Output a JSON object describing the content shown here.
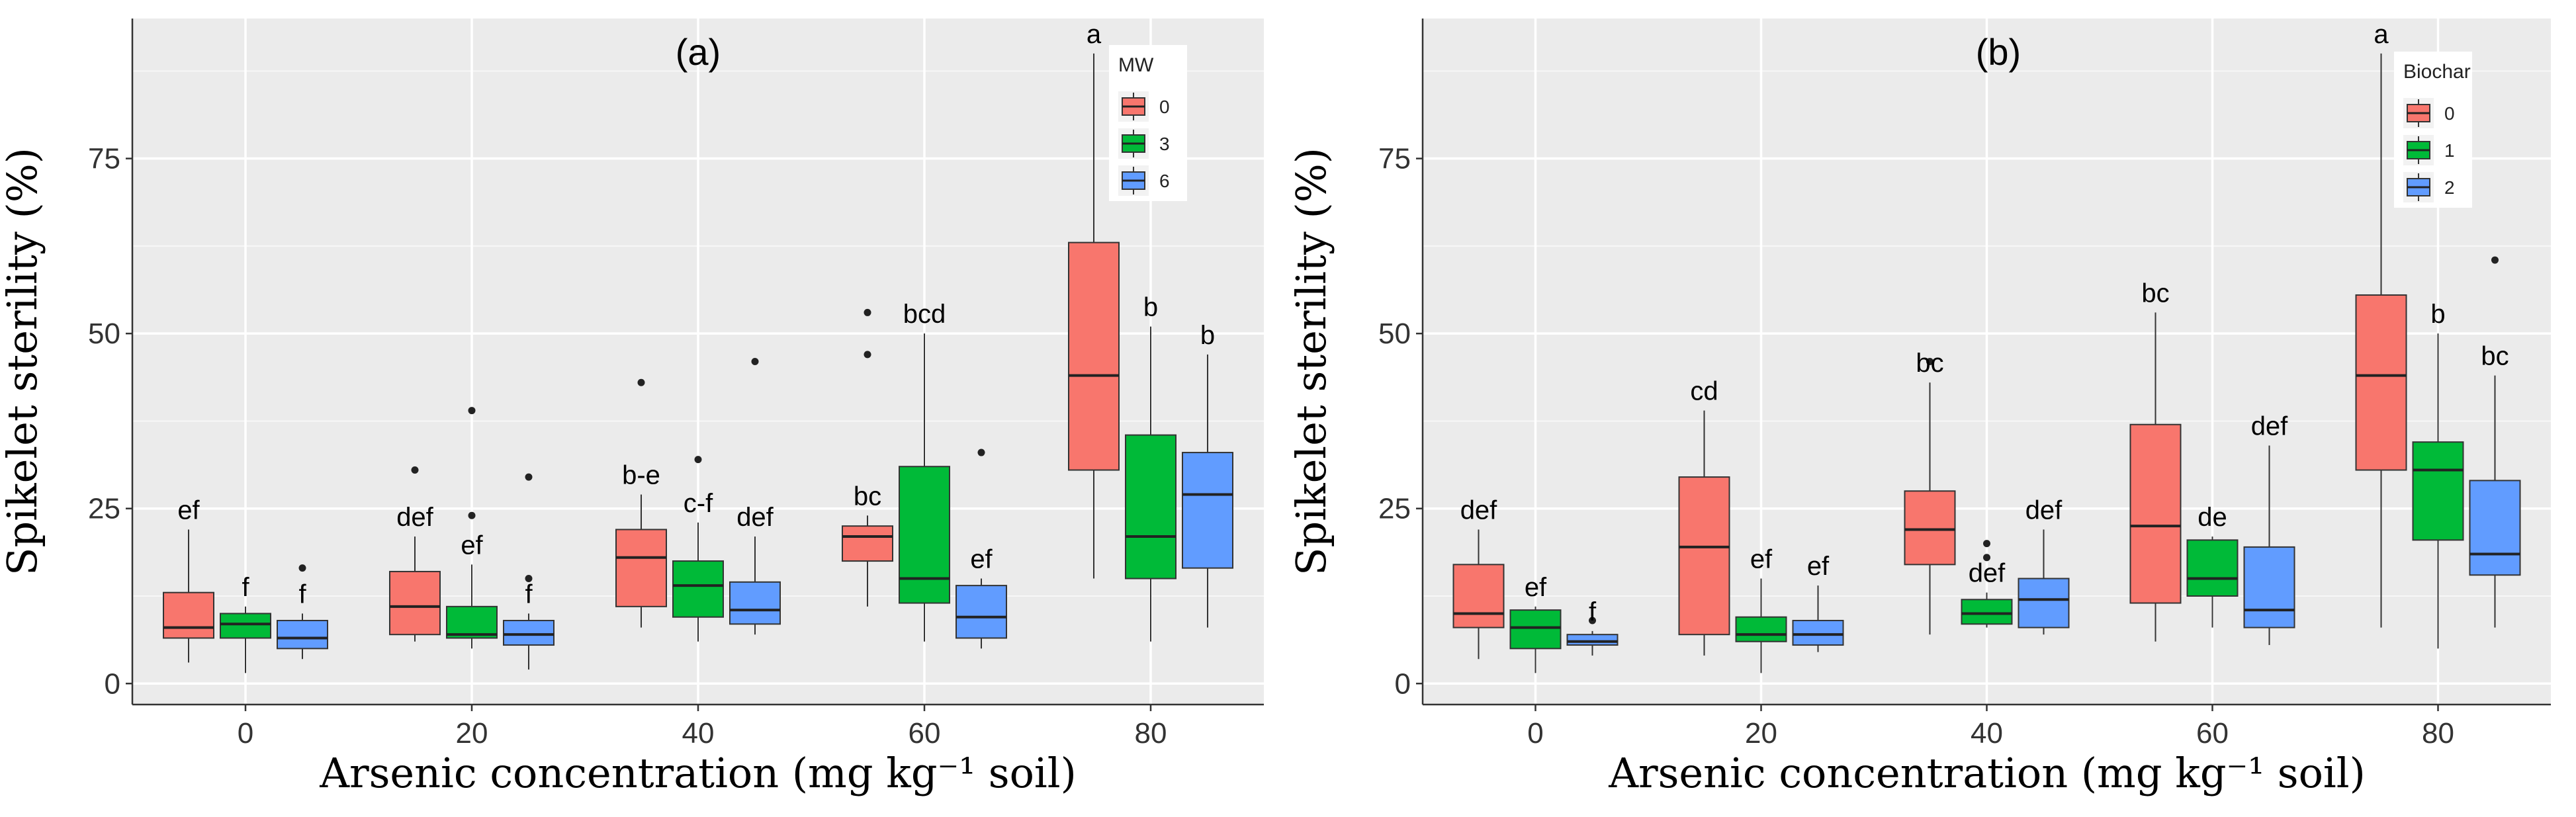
{
  "chart_data": [
    {
      "type": "boxplot",
      "title": "(a)",
      "xlabel": "Arsenic concentration (mg kg⁻¹ soil)",
      "ylabel": "Spikelet sterility (%)",
      "ylim": [
        -3,
        95
      ],
      "yticks": [
        0,
        25,
        50,
        75
      ],
      "categories": [
        "0",
        "20",
        "40",
        "60",
        "80"
      ],
      "legend": {
        "title": "MW",
        "position": "top-right",
        "entries": [
          {
            "label": "0",
            "color": "#F8766D"
          },
          {
            "label": "3",
            "color": "#00BA38"
          },
          {
            "label": "6",
            "color": "#619CFF"
          }
        ]
      },
      "boxes": [
        {
          "category": "0",
          "group": "0",
          "min": 3,
          "q1": 6.5,
          "median": 8,
          "q3": 13,
          "max": 22,
          "outliers": [],
          "label": "ef"
        },
        {
          "category": "0",
          "group": "3",
          "min": 1.5,
          "q1": 6.5,
          "median": 8.5,
          "q3": 10,
          "max": 11,
          "outliers": [],
          "label": "f"
        },
        {
          "category": "0",
          "group": "6",
          "min": 3.5,
          "q1": 5,
          "median": 6.5,
          "q3": 9,
          "max": 10,
          "outliers": [
            16.5
          ],
          "label": "f"
        },
        {
          "category": "20",
          "group": "0",
          "min": 6,
          "q1": 7,
          "median": 11,
          "q3": 16,
          "max": 21,
          "outliers": [
            30.5
          ],
          "label": "def"
        },
        {
          "category": "20",
          "group": "3",
          "min": 5,
          "q1": 6.5,
          "median": 7,
          "q3": 11,
          "max": 17,
          "outliers": [
            24,
            39
          ],
          "label": "ef"
        },
        {
          "category": "20",
          "group": "6",
          "min": 2,
          "q1": 5.5,
          "median": 7,
          "q3": 9,
          "max": 10,
          "outliers": [
            15,
            29.5
          ],
          "label": "f"
        },
        {
          "category": "40",
          "group": "0",
          "min": 8,
          "q1": 11,
          "median": 18,
          "q3": 22,
          "max": 27,
          "outliers": [
            43
          ],
          "label": "b-e"
        },
        {
          "category": "40",
          "group": "3",
          "min": 6,
          "q1": 9.5,
          "median": 14,
          "q3": 17.5,
          "max": 23,
          "outliers": [
            32
          ],
          "label": "c-f"
        },
        {
          "category": "40",
          "group": "6",
          "min": 7,
          "q1": 8.5,
          "median": 10.5,
          "q3": 14.5,
          "max": 21,
          "outliers": [
            46
          ],
          "label": "def"
        },
        {
          "category": "60",
          "group": "0",
          "min": 11,
          "q1": 17.5,
          "median": 21,
          "q3": 22.5,
          "max": 24,
          "outliers": [
            47,
            53
          ],
          "label": "bc"
        },
        {
          "category": "60",
          "group": "3",
          "min": 6,
          "q1": 11.5,
          "median": 15,
          "q3": 31,
          "max": 50,
          "outliers": [],
          "label": "bcd"
        },
        {
          "category": "60",
          "group": "6",
          "min": 5,
          "q1": 6.5,
          "median": 9.5,
          "q3": 14,
          "max": 15,
          "outliers": [
            33
          ],
          "label": "ef"
        },
        {
          "category": "80",
          "group": "0",
          "min": 15,
          "q1": 30.5,
          "median": 44,
          "q3": 63,
          "max": 90,
          "outliers": [],
          "label": "a"
        },
        {
          "category": "80",
          "group": "3",
          "min": 6,
          "q1": 15,
          "median": 21,
          "q3": 35.5,
          "max": 51,
          "outliers": [],
          "label": "b"
        },
        {
          "category": "80",
          "group": "6",
          "min": 8,
          "q1": 16.5,
          "median": 27,
          "q3": 33,
          "max": 47,
          "outliers": [],
          "label": "b"
        }
      ]
    },
    {
      "type": "boxplot",
      "title": "(b)",
      "xlabel": "Arsenic concentration (mg kg⁻¹ soil)",
      "ylabel": "Spikelet sterility (%)",
      "ylim": [
        -3,
        95
      ],
      "yticks": [
        0,
        25,
        50,
        75
      ],
      "categories": [
        "0",
        "20",
        "40",
        "60",
        "80"
      ],
      "legend": {
        "title": "Biochar",
        "position": "top-right",
        "entries": [
          {
            "label": "0",
            "color": "#F8766D"
          },
          {
            "label": "1",
            "color": "#00BA38"
          },
          {
            "label": "2",
            "color": "#619CFF"
          }
        ]
      },
      "boxes": [
        {
          "category": "0",
          "group": "0",
          "min": 3.5,
          "q1": 8,
          "median": 10,
          "q3": 17,
          "max": 22,
          "outliers": [],
          "label": "def"
        },
        {
          "category": "0",
          "group": "1",
          "min": 1.5,
          "q1": 5,
          "median": 8,
          "q3": 10.5,
          "max": 11,
          "outliers": [],
          "label": "ef"
        },
        {
          "category": "0",
          "group": "2",
          "min": 4,
          "q1": 5.5,
          "median": 6,
          "q3": 7,
          "max": 7.5,
          "outliers": [
            9
          ],
          "label": "f"
        },
        {
          "category": "20",
          "group": "0",
          "min": 4,
          "q1": 7,
          "median": 19.5,
          "q3": 29.5,
          "max": 39,
          "outliers": [],
          "label": "cd"
        },
        {
          "category": "20",
          "group": "1",
          "min": 1.5,
          "q1": 6,
          "median": 7,
          "q3": 9.5,
          "max": 15,
          "outliers": [],
          "label": "ef"
        },
        {
          "category": "20",
          "group": "2",
          "min": 4.5,
          "q1": 5.5,
          "median": 7,
          "q3": 9,
          "max": 14,
          "outliers": [],
          "label": "ef"
        },
        {
          "category": "40",
          "group": "0",
          "min": 7,
          "q1": 17,
          "median": 22,
          "q3": 27.5,
          "max": 43,
          "outliers": [
            46
          ],
          "label": "bc"
        },
        {
          "category": "40",
          "group": "1",
          "min": 8,
          "q1": 8.5,
          "median": 10,
          "q3": 12,
          "max": 13,
          "outliers": [
            18,
            20
          ],
          "label": "def"
        },
        {
          "category": "40",
          "group": "2",
          "min": 7,
          "q1": 8,
          "median": 12,
          "q3": 15,
          "max": 22,
          "outliers": [],
          "label": "def"
        },
        {
          "category": "60",
          "group": "0",
          "min": 6,
          "q1": 11.5,
          "median": 22.5,
          "q3": 37,
          "max": 53,
          "outliers": [],
          "label": "bc"
        },
        {
          "category": "60",
          "group": "1",
          "min": 8,
          "q1": 12.5,
          "median": 15,
          "q3": 20.5,
          "max": 21,
          "outliers": [],
          "label": "de"
        },
        {
          "category": "60",
          "group": "2",
          "min": 5.5,
          "q1": 8,
          "median": 10.5,
          "q3": 19.5,
          "max": 34,
          "outliers": [],
          "label": "def"
        },
        {
          "category": "80",
          "group": "0",
          "min": 8,
          "q1": 30.5,
          "median": 44,
          "q3": 55.5,
          "max": 90,
          "outliers": [],
          "label": "a"
        },
        {
          "category": "80",
          "group": "1",
          "min": 5,
          "q1": 20.5,
          "median": 30.5,
          "q3": 34.5,
          "max": 50,
          "outliers": [],
          "label": "b"
        },
        {
          "category": "80",
          "group": "2",
          "min": 8,
          "q1": 15.5,
          "median": 18.5,
          "q3": 29,
          "max": 44,
          "outliers": [
            60.5
          ],
          "label": "bc"
        }
      ]
    }
  ]
}
